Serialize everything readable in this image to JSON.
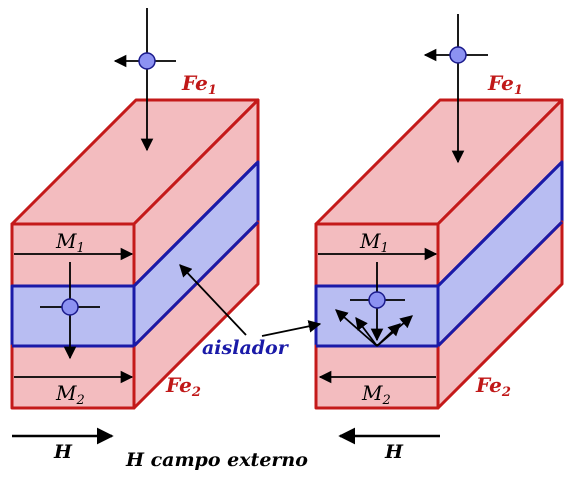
{
  "labels": {
    "fe1": "Fe",
    "fe1_sub": "1",
    "fe2": "Fe",
    "fe2_sub": "2",
    "m1": "M",
    "m1_sub": "1",
    "m2": "M",
    "m2_sub": "2",
    "aislador": "aislador",
    "h": "H",
    "caption": "H campo externo"
  },
  "colors": {
    "ferromagnet_fill": "#f3bcbf",
    "ferromagnet_edge": "#c41a1a",
    "insulator_fill": "#b8bdf2",
    "insulator_edge": "#1a1aa8",
    "electron": "#8c92f2"
  }
}
